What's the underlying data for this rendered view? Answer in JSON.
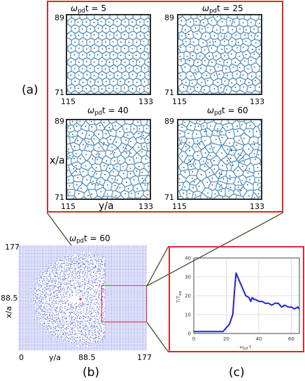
{
  "panel_a": {
    "letter": "(a)",
    "subplots": [
      {
        "t_value": "5",
        "ymax": "89",
        "ymin": "71",
        "xmin": "115",
        "xmax": "133",
        "seed": 11,
        "disorder": 0.15
      },
      {
        "t_value": "25",
        "ymax": "89",
        "ymin": "71",
        "xmin": "115",
        "xmax": "133",
        "seed": 23,
        "disorder": 0.45
      },
      {
        "t_value": "40",
        "ymax": "89",
        "ymin": "71",
        "xmin": "115",
        "xmax": "133",
        "seed": 37,
        "disorder": 0.7
      },
      {
        "t_value": "60",
        "ymax": "89",
        "ymin": "71",
        "xmin": "115",
        "xmax": "133",
        "seed": 51,
        "disorder": 0.85
      }
    ],
    "omega_symbol": "ω",
    "omega_sub": "pd",
    "t_prefix": "t = ",
    "ylabel": "x/a",
    "xlabel": "y/a"
  },
  "panel_b": {
    "letter": "(b)",
    "title_t_prefix": "t = ",
    "title_t_value": "60",
    "omega_symbol": "ω",
    "omega_sub": "pd",
    "ymax": "177",
    "ymid": "88.5",
    "xmin": "0",
    "xmid": "88.5",
    "xmax": "177",
    "ylabel": "x/a",
    "xlabel": "y/a",
    "dot_color": "#2d3bd6"
  },
  "panel_c": {
    "letter": "(c)",
    "ylabel": "T/T",
    "ylabel_sub": "eq",
    "xlabel_omega": "ω",
    "xlabel_sub": "pd",
    "xlabel_t": "t",
    "line_color": "#1f22d8"
  },
  "chart_data": {
    "type": "line",
    "title": "",
    "xlabel": "ω_pd t",
    "ylabel": "T/T_eq",
    "xlim": [
      0,
      65
    ],
    "ylim": [
      0,
      40
    ],
    "x_ticks": [
      "0",
      "20",
      "40",
      "60"
    ],
    "y_ticks": [
      "0",
      "10",
      "20",
      "30",
      "40"
    ],
    "grid": true,
    "series": [
      {
        "x": [
          0,
          5,
          10,
          15,
          18,
          20,
          22,
          24,
          25,
          26,
          28,
          30,
          32,
          34,
          35,
          36,
          37,
          38,
          40,
          42,
          44,
          46,
          48,
          50,
          52,
          54,
          56,
          58,
          60,
          62,
          64,
          65
        ],
        "y": [
          1,
          1,
          1,
          1,
          1,
          3,
          5,
          10,
          22,
          32,
          28,
          24,
          20,
          19,
          17,
          19,
          18,
          18,
          17,
          17,
          16,
          16,
          15,
          16,
          16,
          14,
          15,
          14,
          14,
          13,
          14,
          13
        ]
      }
    ]
  }
}
